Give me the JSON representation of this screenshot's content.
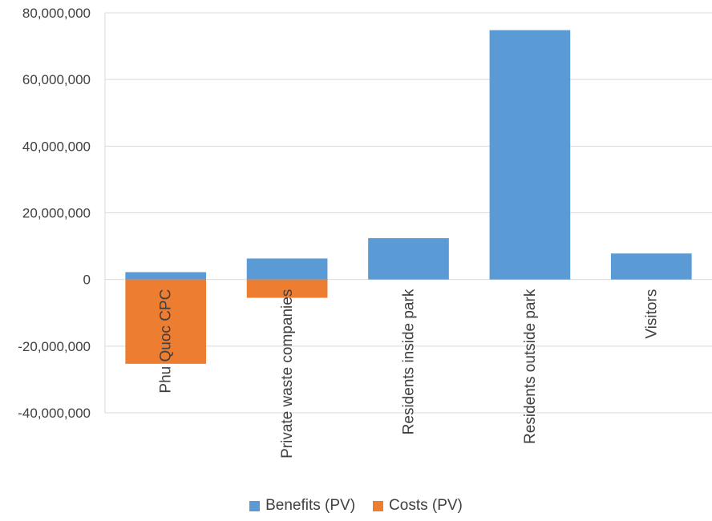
{
  "chart_data": {
    "type": "bar",
    "categories": [
      "Phu Quoc CPC",
      "Private waste companies",
      "Residents inside park",
      "Residents outside park",
      "Visitors"
    ],
    "series": [
      {
        "name": "Benefits (PV)",
        "color": "#5b9bd5",
        "values": [
          2200000,
          6300000,
          12400000,
          74800000,
          7800000
        ]
      },
      {
        "name": "Costs (PV)",
        "color": "#ed7d31",
        "values": [
          -25300000,
          -5500000,
          0,
          0,
          0
        ]
      }
    ],
    "y_ticks": [
      "80,000,000",
      "60,000,000",
      "40,000,000",
      "20,000,000",
      "0",
      "-20,000,000",
      "-40,000,000"
    ],
    "ylim": [
      -40000000,
      80000000
    ],
    "grid": true,
    "stacked": true,
    "legend_position": "bottom"
  }
}
